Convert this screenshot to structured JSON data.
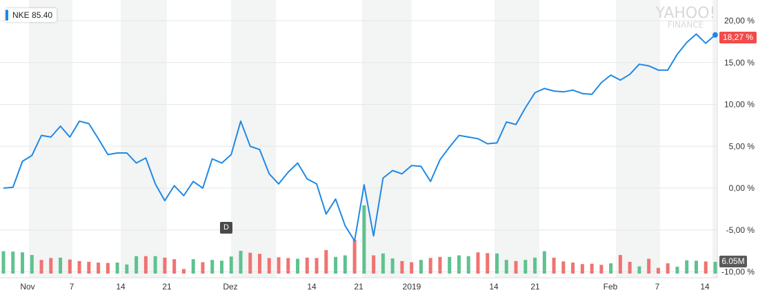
{
  "ticker": {
    "symbol": "NKE",
    "price": "85.40"
  },
  "watermark": {
    "line1": "YAHOO!",
    "line2": "FINANCE"
  },
  "colors": {
    "line": "#1e88e5",
    "up": "#5ec28f",
    "down": "#f07370",
    "badge": "#f24b4b",
    "volume_badge": "#5a5a5a",
    "shade": "#f3f4f4"
  },
  "price_badge": "18,27 %",
  "volume_badge": "6.05M",
  "dividend_marker": "D",
  "chart_data": {
    "type": "line",
    "ylim": [
      -10,
      21
    ],
    "y_ticks": [
      {
        "value": 20,
        "label": "20,00 %"
      },
      {
        "value": 15,
        "label": "15,00 %"
      },
      {
        "value": 10,
        "label": "10,00 %"
      },
      {
        "value": 5,
        "label": "5,00 %"
      },
      {
        "value": 0,
        "label": "0,00 %"
      },
      {
        "value": -5,
        "label": "-5,00 %"
      },
      {
        "value": -10,
        "label": "-10,00 %"
      }
    ],
    "x_ticks": [
      "Nov",
      "7",
      "14",
      "21",
      "Dez",
      "14",
      "21",
      "2019",
      "14",
      "21",
      "Feb",
      "7",
      "14"
    ],
    "series": [
      {
        "values": [
          0.0,
          0.1,
          3.2,
          3.9,
          6.3,
          6.1,
          7.4,
          6.1,
          8.0,
          7.7,
          5.9,
          4.0,
          4.2,
          4.2,
          3.0,
          3.6,
          0.5,
          -1.5,
          0.3,
          -0.9,
          0.8,
          0.0,
          3.5,
          3.0,
          4.0,
          8.0,
          5.0,
          4.6,
          1.7,
          0.5,
          1.9,
          3.0,
          1.1,
          0.5,
          -3.1,
          -1.3,
          -4.5,
          -6.3,
          0.4,
          -5.7,
          1.2,
          2.1,
          1.7,
          2.7,
          2.6,
          0.8,
          3.4,
          4.9,
          6.3,
          6.1,
          5.9,
          5.3,
          5.4,
          7.9,
          7.6,
          9.6,
          11.4,
          11.9,
          11.6,
          11.5,
          11.7,
          11.3,
          11.2,
          12.6,
          13.5,
          12.9,
          13.6,
          14.8,
          14.6,
          14.1,
          14.1,
          16.0,
          17.4,
          18.4,
          17.3,
          18.3
        ]
      }
    ],
    "volume": {
      "values": [
        5.9,
        5.8,
        5.6,
        4.9,
        3.6,
        4.1,
        4.2,
        3.7,
        3.3,
        3.1,
        2.9,
        2.8,
        2.9,
        2.4,
        4.6,
        4.6,
        4.6,
        4.2,
        3.8,
        1.2,
        3.8,
        3.0,
        3.6,
        3.4,
        4.5,
        6.0,
        5.5,
        5.2,
        4.1,
        4.3,
        4.1,
        3.9,
        4.2,
        4.1,
        6.2,
        4.4,
        4.8,
        8.9,
        18.0,
        4.8,
        5.3,
        4.0,
        3.3,
        3.0,
        3.6,
        4.1,
        4.4,
        4.4,
        4.8,
        4.6,
        5.6,
        5.4,
        5.3,
        3.6,
        3.3,
        3.6,
        4.2,
        5.9,
        4.2,
        3.2,
        2.9,
        2.5,
        2.6,
        2.3,
        2.7,
        4.9,
        3.1,
        1.9,
        3.9,
        1.5,
        2.7,
        1.8,
        3.5,
        3.4,
        3.2,
        3.1
      ],
      "direction": [
        "u",
        "u",
        "u",
        "u",
        "d",
        "d",
        "u",
        "d",
        "d",
        "d",
        "d",
        "d",
        "u",
        "u",
        "u",
        "d",
        "u",
        "d",
        "d",
        "d",
        "u",
        "d",
        "u",
        "u",
        "u",
        "u",
        "d",
        "d",
        "d",
        "d",
        "d",
        "u",
        "d",
        "d",
        "d",
        "u",
        "u",
        "d",
        "u",
        "d",
        "u",
        "u",
        "d",
        "d",
        "u",
        "d",
        "d",
        "u",
        "u",
        "u",
        "d",
        "d",
        "u",
        "u",
        "d",
        "u",
        "u",
        "u",
        "d",
        "d",
        "d",
        "d",
        "d",
        "d",
        "u",
        "d",
        "d",
        "u",
        "d",
        "d",
        "d",
        "u",
        "u",
        "u",
        "d",
        "u"
      ]
    }
  }
}
